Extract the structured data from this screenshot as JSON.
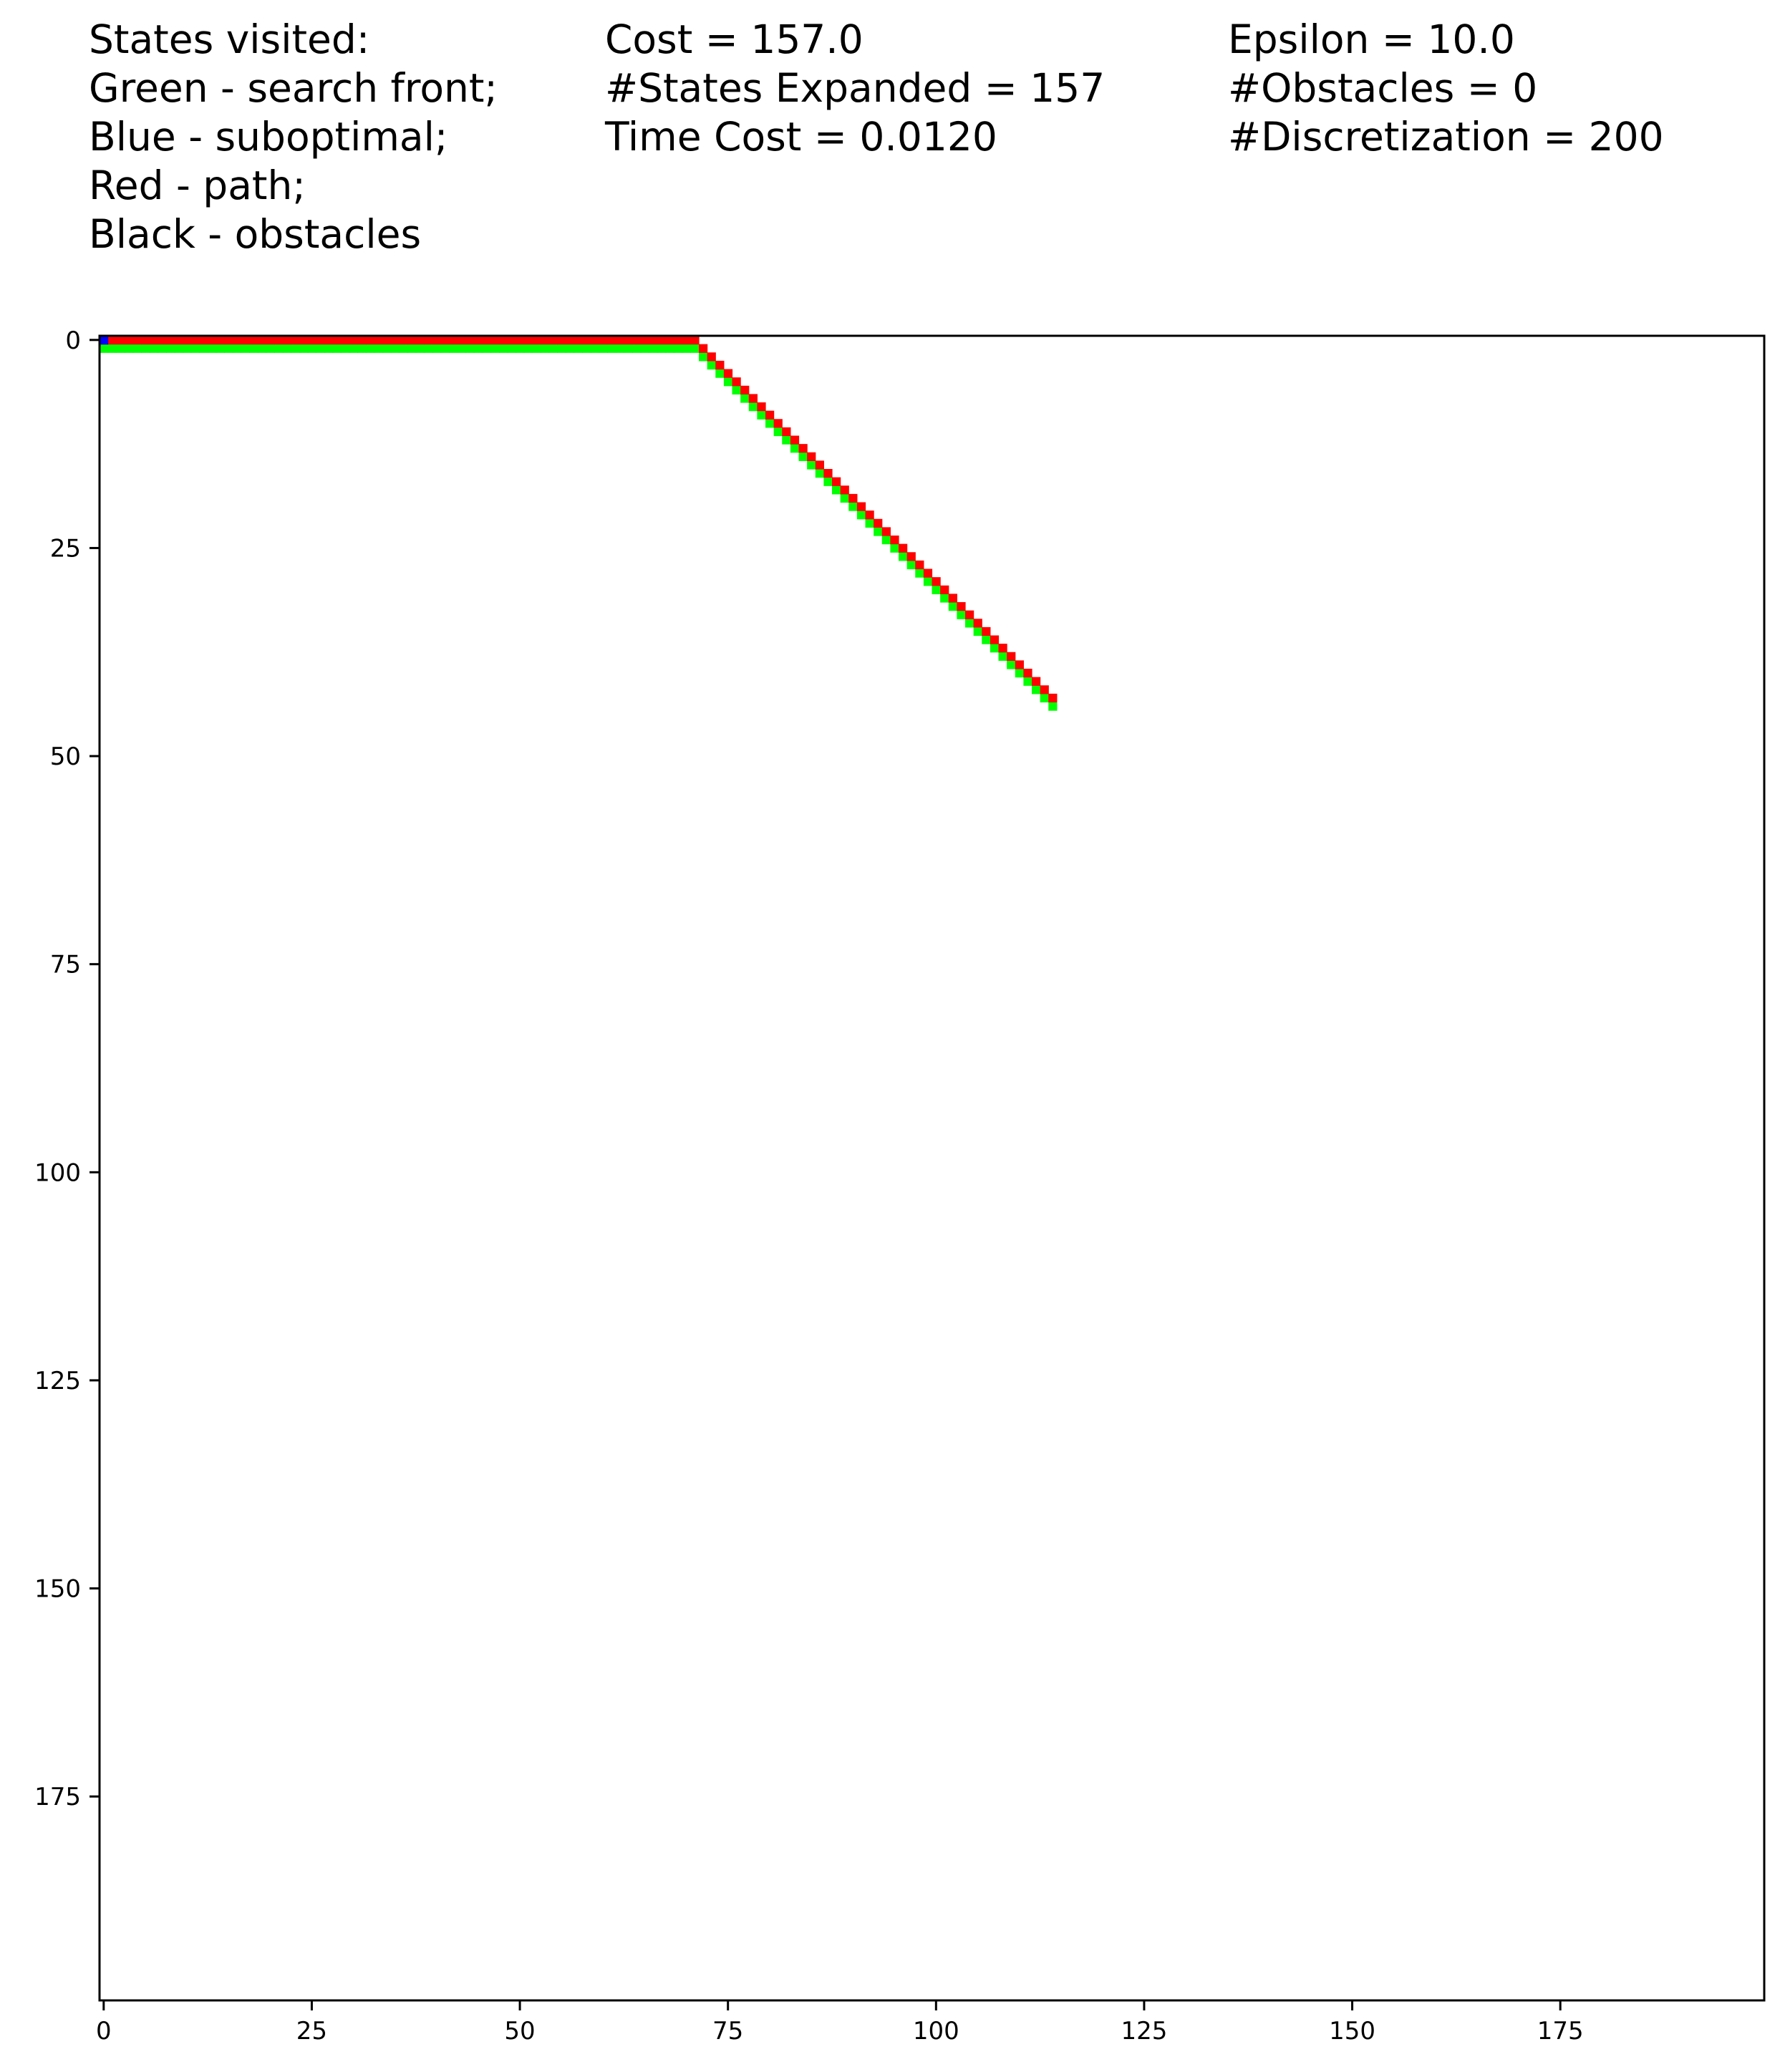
{
  "info": {
    "col1": [
      "States visited:",
      "Green - search front;",
      "Blue - suboptimal;",
      "Red - path;",
      "Black - obstacles"
    ],
    "col2": [
      "Cost = 157.0",
      "#States Expanded = 157",
      "Time Cost = 0.0120"
    ],
    "col3": [
      "Epsilon = 10.0",
      "#Obstacles = 0",
      "#Discretization = 200"
    ]
  },
  "colors": {
    "search_front": "#00ff00",
    "suboptimal": "#0000ff",
    "path": "#ff0000",
    "obstacles": "#000000",
    "background": "#ffffff"
  },
  "chart_data": {
    "type": "heatmap",
    "grid_size": 200,
    "xlim": [
      0,
      200
    ],
    "ylim": [
      0,
      200
    ],
    "y_inverted": true,
    "xticks": [
      0,
      25,
      50,
      75,
      100,
      125,
      150,
      175
    ],
    "yticks": [
      0,
      25,
      50,
      75,
      100,
      125,
      150,
      175
    ],
    "start": [
      0,
      0
    ],
    "goal": [
      114,
      43
    ],
    "path": {
      "horizontal_segment": {
        "row": 0,
        "col_start": 0,
        "col_end": 71
      },
      "diagonal_segment": {
        "from": [
          71,
          0
        ],
        "to": [
          114,
          43
        ]
      }
    },
    "suboptimal_cells": [
      [
        0,
        0
      ]
    ],
    "obstacles": []
  }
}
